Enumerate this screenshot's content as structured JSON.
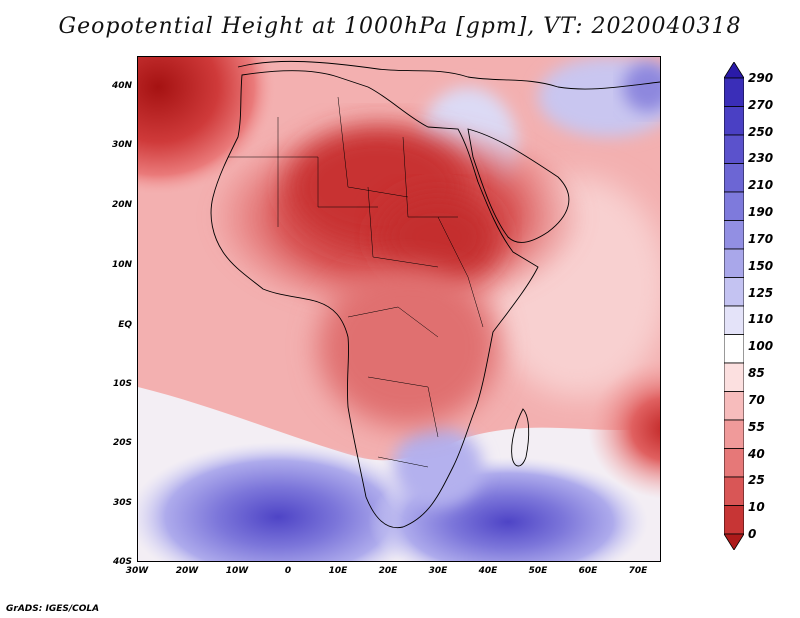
{
  "title": "Geopotential Height at 1000hPa [gpm], VT: 2020040318",
  "credit": "GrADS: IGES/COLA",
  "map": {
    "variable": "Geopotential Height at 1000hPa",
    "units": "gpm",
    "valid_time": "2020040318",
    "lat_labels": [
      "40N",
      "30N",
      "20N",
      "10N",
      "EQ",
      "10S",
      "20S",
      "30S",
      "40S"
    ],
    "lon_labels": [
      "30W",
      "20W",
      "10W",
      "0",
      "10E",
      "20E",
      "30E",
      "40E",
      "50E",
      "60E",
      "70E"
    ]
  },
  "colorbar": {
    "levels": [
      "290",
      "270",
      "250",
      "230",
      "210",
      "190",
      "170",
      "150",
      "125",
      "110",
      "100",
      "85",
      "70",
      "55",
      "40",
      "25",
      "10",
      "0"
    ],
    "colors": [
      "#2a1aa8",
      "#3a2eb8",
      "#4a40c4",
      "#5b52cc",
      "#6c66d4",
      "#7e7adc",
      "#928fe3",
      "#a9a7ea",
      "#c4c3f2",
      "#e4e3f9",
      "#ffffff",
      "#fce0e0",
      "#f7bcbc",
      "#f09a9a",
      "#e67878",
      "#d95656",
      "#c73535",
      "#ad1a1a"
    ]
  }
}
